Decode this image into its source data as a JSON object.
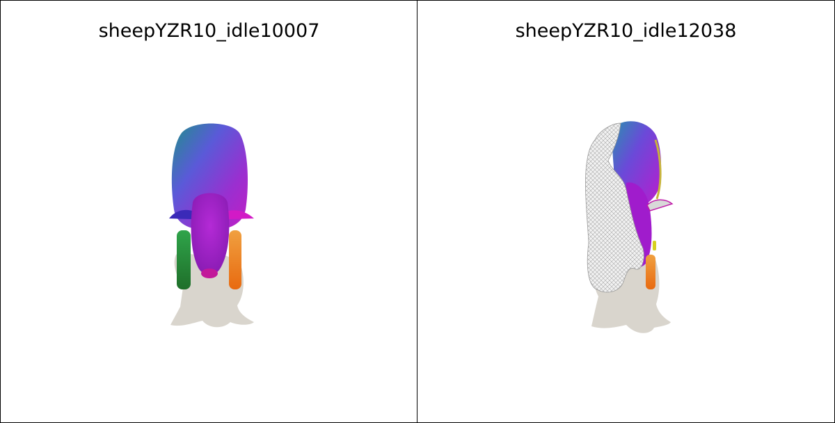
{
  "panels": [
    {
      "title": "sheepYZR10_idle10007"
    },
    {
      "title": "sheepYZR10_idle12038"
    }
  ],
  "colors": {
    "background": "#ffffff",
    "border": "#000000",
    "shadow": "#d8d4cc",
    "mesh_wireframe": "#b8b8b8"
  }
}
